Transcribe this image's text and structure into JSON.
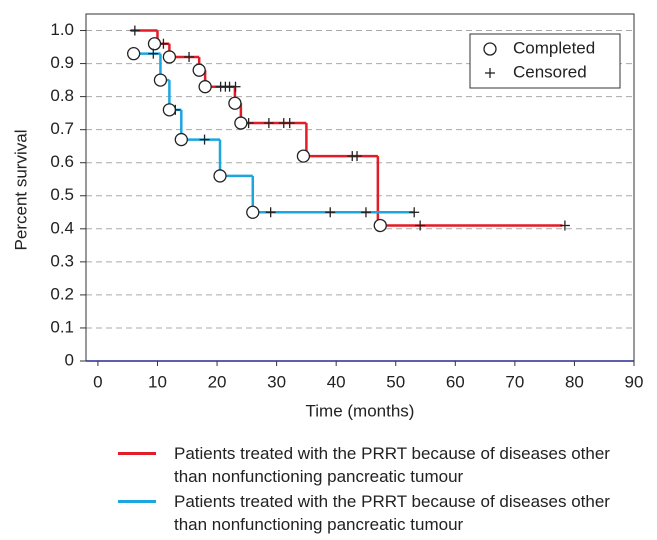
{
  "chart_data": {
    "type": "kaplan-meier",
    "xlabel": "Time (months)",
    "ylabel": "Percent survival",
    "xlim": [
      -2,
      90
    ],
    "ylim": [
      0,
      1.05
    ],
    "xticks": [
      0,
      10,
      20,
      30,
      40,
      50,
      60,
      70,
      80,
      90
    ],
    "yticks": [
      0,
      0.1,
      0.2,
      0.3,
      0.4,
      0.5,
      0.6,
      0.7,
      0.8,
      0.9,
      {
        "value": 1,
        "label": "1.0"
      }
    ],
    "grid": true,
    "marker_legend": {
      "completed": "Completed",
      "censored": "Censored"
    },
    "series": [
      {
        "name": "Patients treated with the PRRT because of diseases other than nonfunctioning pancreatic tumour",
        "color": "#e31d27",
        "x": [
          5.5,
          10,
          12,
          17,
          18,
          23,
          24,
          35,
          47,
          78
        ],
        "values": [
          1.0,
          0.96,
          0.92,
          0.88,
          0.83,
          0.78,
          0.72,
          0.62,
          0.41,
          0.41
        ],
        "completed": {
          "x": [
            9.5,
            12,
            17,
            18,
            23,
            24,
            34.5,
            47.4
          ],
          "values": [
            0.96,
            0.92,
            0.88,
            0.83,
            0.78,
            0.72,
            0.62,
            0.41
          ]
        },
        "censored": {
          "x": [
            6.2,
            11,
            15.3,
            20.6,
            21.4,
            22.1,
            23.1,
            25.3,
            28.7,
            31.2,
            32.2,
            42.7,
            43.5,
            54.1,
            78.4
          ],
          "values": [
            1.0,
            0.96,
            0.92,
            0.83,
            0.83,
            0.83,
            0.83,
            0.72,
            0.72,
            0.72,
            0.72,
            0.62,
            0.62,
            0.41,
            0.41
          ]
        }
      },
      {
        "name": "Patients treated with the PRRT because of diseases other than nonfunctioning pancreatic tumour",
        "color": "#1ba6e0",
        "x": [
          5.5,
          10.5,
          12,
          14,
          20.5,
          26,
          53
        ],
        "values": [
          0.93,
          0.85,
          0.76,
          0.67,
          0.56,
          0.45,
          0.45
        ],
        "completed": {
          "x": [
            6,
            10.5,
            12,
            14,
            20.5,
            26
          ],
          "values": [
            0.93,
            0.85,
            0.76,
            0.67,
            0.56,
            0.45
          ]
        },
        "censored": {
          "x": [
            9.3,
            13,
            17.9,
            29,
            39,
            45,
            53.1
          ],
          "values": [
            0.93,
            0.76,
            0.67,
            0.45,
            0.45,
            0.45,
            0.45
          ]
        }
      }
    ]
  }
}
